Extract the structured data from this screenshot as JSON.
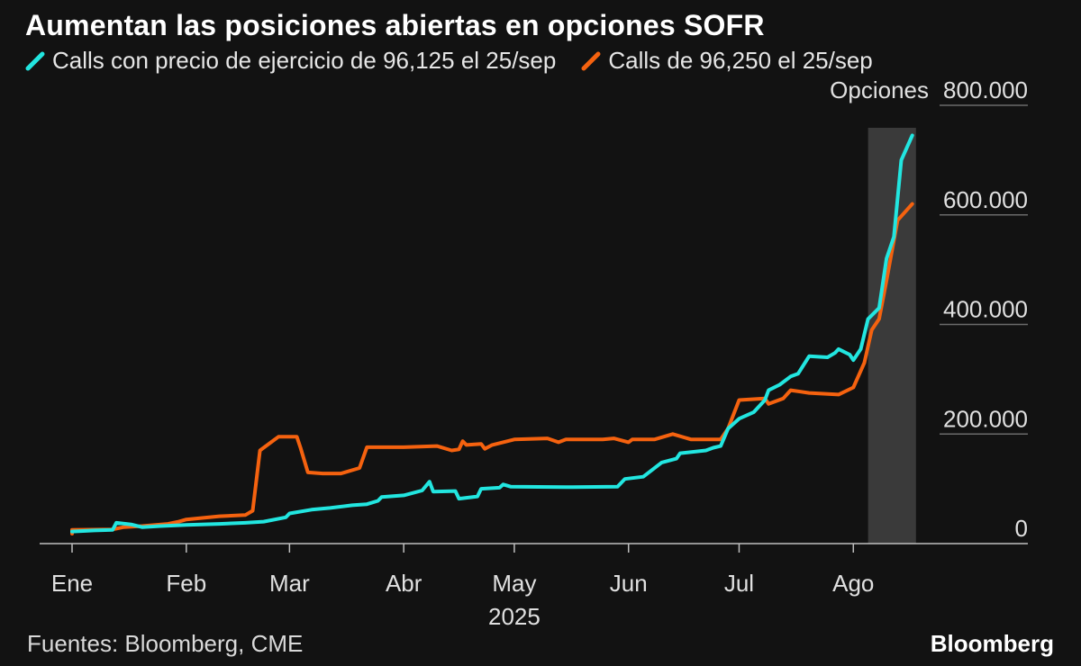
{
  "chart_data": {
    "type": "line",
    "title": "Aumentan las posiciones abiertas en opciones SOFR",
    "y_unit_label": "Opciones",
    "ylim": [
      0,
      800000
    ],
    "y_ticks": [
      0,
      200000,
      400000,
      600000,
      800000
    ],
    "y_tick_labels": [
      "0",
      "200.000",
      "400.000",
      "600.000",
      "800.000"
    ],
    "x_ticks": [
      "2025-01-01",
      "2025-02-01",
      "2025-03-01",
      "2025-04-01",
      "2025-05-01",
      "2025-06-01",
      "2025-07-01",
      "2025-08-01"
    ],
    "x_tick_labels": [
      "Ene",
      "Feb",
      "Mar",
      "Abr",
      "May",
      "Jun",
      "Jul",
      "Ago"
    ],
    "year_label": "2025",
    "xlim": [
      "2025-01-01",
      "2025-08-20"
    ],
    "highlight_range": [
      "2025-08-05",
      "2025-08-18"
    ],
    "grid": "horizontal lines at y ticks",
    "legend_placement": "top-left",
    "colors": {
      "background": "#121212",
      "highlight": "#3a3a3a",
      "axis": "#bfbfbf",
      "grid": "#6a6a6a"
    },
    "series": [
      {
        "name": "Calls con precio de ejercicio de 96,125 el 25/sep",
        "color": "#22e6e0",
        "points": [
          [
            "2025-01-01",
            22000
          ],
          [
            "2025-01-07",
            24000
          ],
          [
            "2025-01-12",
            25000
          ],
          [
            "2025-01-13",
            38000
          ],
          [
            "2025-01-17",
            35000
          ],
          [
            "2025-01-20",
            30000
          ],
          [
            "2025-01-25",
            32000
          ],
          [
            "2025-02-01",
            34000
          ],
          [
            "2025-02-10",
            36000
          ],
          [
            "2025-02-17",
            38000
          ],
          [
            "2025-02-22",
            40000
          ],
          [
            "2025-02-28",
            48000
          ],
          [
            "2025-03-01",
            55000
          ],
          [
            "2025-03-07",
            62000
          ],
          [
            "2025-03-12",
            65000
          ],
          [
            "2025-03-18",
            70000
          ],
          [
            "2025-03-22",
            72000
          ],
          [
            "2025-03-25",
            78000
          ],
          [
            "2025-03-26",
            85000
          ],
          [
            "2025-04-01",
            88000
          ],
          [
            "2025-04-06",
            97000
          ],
          [
            "2025-04-08",
            113000
          ],
          [
            "2025-04-09",
            95000
          ],
          [
            "2025-04-15",
            96000
          ],
          [
            "2025-04-16",
            82000
          ],
          [
            "2025-04-21",
            86000
          ],
          [
            "2025-04-22",
            100000
          ],
          [
            "2025-04-27",
            102000
          ],
          [
            "2025-04-28",
            108000
          ],
          [
            "2025-04-30",
            104000
          ],
          [
            "2025-05-15",
            103000
          ],
          [
            "2025-05-29",
            104000
          ],
          [
            "2025-05-31",
            118000
          ],
          [
            "2025-06-05",
            122000
          ],
          [
            "2025-06-10",
            148000
          ],
          [
            "2025-06-14",
            155000
          ],
          [
            "2025-06-15",
            165000
          ],
          [
            "2025-06-22",
            170000
          ],
          [
            "2025-06-24",
            175000
          ],
          [
            "2025-06-26",
            178000
          ],
          [
            "2025-06-28",
            210000
          ],
          [
            "2025-07-01",
            228000
          ],
          [
            "2025-07-05",
            240000
          ],
          [
            "2025-07-08",
            262000
          ],
          [
            "2025-07-09",
            280000
          ],
          [
            "2025-07-12",
            290000
          ],
          [
            "2025-07-15",
            305000
          ],
          [
            "2025-07-17",
            310000
          ],
          [
            "2025-07-20",
            342000
          ],
          [
            "2025-07-25",
            340000
          ],
          [
            "2025-07-27",
            348000
          ],
          [
            "2025-07-28",
            355000
          ],
          [
            "2025-07-31",
            345000
          ],
          [
            "2025-08-01",
            335000
          ],
          [
            "2025-08-03",
            355000
          ],
          [
            "2025-08-05",
            410000
          ],
          [
            "2025-08-08",
            430000
          ],
          [
            "2025-08-10",
            520000
          ],
          [
            "2025-08-12",
            560000
          ],
          [
            "2025-08-14",
            700000
          ],
          [
            "2025-08-17",
            745000
          ]
        ]
      },
      {
        "name": "Calls de 96,250 el 25/sep",
        "color": "#f5620f",
        "points": [
          [
            "2025-01-01",
            18000
          ],
          [
            "2025-01-01",
            25000
          ],
          [
            "2025-01-12",
            26000
          ],
          [
            "2025-01-15",
            30000
          ],
          [
            "2025-01-20",
            32000
          ],
          [
            "2025-01-27",
            36000
          ],
          [
            "2025-01-30",
            40000
          ],
          [
            "2025-02-01",
            44000
          ],
          [
            "2025-02-10",
            50000
          ],
          [
            "2025-02-17",
            52000
          ],
          [
            "2025-02-19",
            60000
          ],
          [
            "2025-02-21",
            170000
          ],
          [
            "2025-02-24",
            185000
          ],
          [
            "2025-02-26",
            195000
          ],
          [
            "2025-03-03",
            195000
          ],
          [
            "2025-03-04",
            175000
          ],
          [
            "2025-03-06",
            130000
          ],
          [
            "2025-03-10",
            128000
          ],
          [
            "2025-03-15",
            128000
          ],
          [
            "2025-03-20",
            138000
          ],
          [
            "2025-03-22",
            176000
          ],
          [
            "2025-04-01",
            176000
          ],
          [
            "2025-04-10",
            178000
          ],
          [
            "2025-04-14",
            170000
          ],
          [
            "2025-04-16",
            172000
          ],
          [
            "2025-04-17",
            187000
          ],
          [
            "2025-04-18",
            180000
          ],
          [
            "2025-04-22",
            182000
          ],
          [
            "2025-04-23",
            173000
          ],
          [
            "2025-04-25",
            180000
          ],
          [
            "2025-05-01",
            190000
          ],
          [
            "2025-05-10",
            192000
          ],
          [
            "2025-05-13",
            185000
          ],
          [
            "2025-05-15",
            190000
          ],
          [
            "2025-05-25",
            190000
          ],
          [
            "2025-05-28",
            192000
          ],
          [
            "2025-06-01",
            185000
          ],
          [
            "2025-06-02",
            190000
          ],
          [
            "2025-06-08",
            190000
          ],
          [
            "2025-06-13",
            200000
          ],
          [
            "2025-06-18",
            190000
          ],
          [
            "2025-06-26",
            190000
          ],
          [
            "2025-06-28",
            210000
          ],
          [
            "2025-07-01",
            262000
          ],
          [
            "2025-07-08",
            265000
          ],
          [
            "2025-07-09",
            255000
          ],
          [
            "2025-07-13",
            265000
          ],
          [
            "2025-07-15",
            280000
          ],
          [
            "2025-07-20",
            275000
          ],
          [
            "2025-07-28",
            272000
          ],
          [
            "2025-08-01",
            285000
          ],
          [
            "2025-08-04",
            330000
          ],
          [
            "2025-08-06",
            390000
          ],
          [
            "2025-08-08",
            410000
          ],
          [
            "2025-08-10",
            480000
          ],
          [
            "2025-08-13",
            590000
          ],
          [
            "2025-08-17",
            620000
          ]
        ]
      }
    ]
  },
  "footer": {
    "source": "Fuentes: Bloomberg, CME",
    "brand": "Bloomberg"
  }
}
